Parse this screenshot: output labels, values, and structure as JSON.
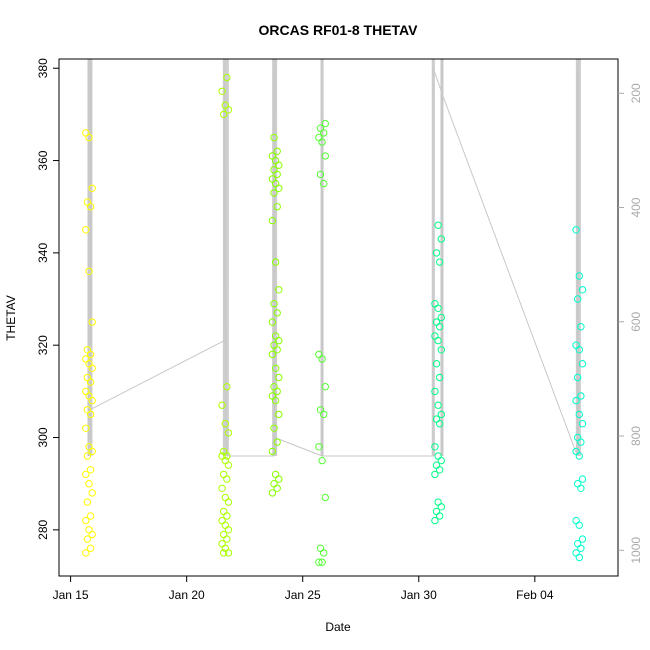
{
  "chart_data": {
    "type": "scatter",
    "title": "ORCAS RF01-8 THETAV",
    "xlabel": "Date",
    "ylabel": "THETAV",
    "xlim": [
      "2016-01-14T12:00",
      "2016-02-07T14:00"
    ],
    "ylim": [
      270,
      382
    ],
    "x_ticks": [
      {
        "date": "2016-01-15",
        "label": "Jan 15"
      },
      {
        "date": "2016-01-20",
        "label": "Jan 20"
      },
      {
        "date": "2016-01-25",
        "label": "Jan 25"
      },
      {
        "date": "2016-01-30",
        "label": "Jan 30"
      },
      {
        "date": "2016-02-04",
        "label": "Feb 04"
      }
    ],
    "y_ticks": [
      280,
      300,
      320,
      340,
      360,
      380
    ],
    "y2_ticks": [
      200,
      400,
      600,
      800,
      1000
    ],
    "y2lim": [
      1045,
      140
    ],
    "grid": false,
    "legend": "none",
    "series": [
      {
        "color": "#ffff00",
        "center": "2016-01-15T19:00",
        "values": [
          366,
          365,
          354,
          351,
          350,
          345,
          336,
          325,
          319,
          318,
          317,
          316,
          315,
          313,
          312,
          310,
          309,
          308,
          306,
          305,
          302,
          298,
          297,
          296,
          293,
          292,
          290,
          288,
          286,
          283,
          282,
          280,
          279,
          278,
          276,
          275
        ]
      },
      {
        "color": "#aaff00",
        "center": "2016-01-21T16:00",
        "values": [
          378,
          375,
          372,
          371,
          370,
          311,
          307,
          303,
          301,
          297,
          296,
          296,
          295,
          294,
          292,
          291,
          289,
          287,
          286,
          284,
          283,
          282,
          281,
          280,
          279,
          278,
          277,
          276,
          275,
          275
        ]
      },
      {
        "color": "#88ff00",
        "center": "2016-01-23T20:00",
        "values": [
          365,
          362,
          361,
          360,
          359,
          358,
          357,
          356,
          355,
          354,
          353,
          350,
          347,
          338,
          332,
          329,
          327,
          325,
          322,
          321,
          320,
          319,
          318,
          315,
          313,
          311,
          310,
          309,
          308,
          305,
          302,
          299,
          297,
          292,
          291,
          290,
          289,
          288
        ]
      },
      {
        "color": "#55ff33",
        "center": "2016-01-25T20:00",
        "values": [
          368,
          367,
          366,
          365,
          364,
          361,
          357,
          355,
          318,
          317,
          311,
          306,
          305,
          298,
          295,
          287,
          276,
          275,
          273,
          273
        ]
      },
      {
        "color": "#00ff88",
        "center": "2016-01-30T20:00",
        "values": [
          346,
          343,
          340,
          338,
          329,
          328,
          326,
          325,
          324,
          322,
          321,
          319,
          316,
          313,
          310,
          307,
          305,
          304,
          303,
          298,
          296,
          295,
          294,
          293,
          292,
          286,
          285,
          284,
          283,
          282
        ]
      },
      {
        "color": "#00ffcc",
        "center": "2016-02-05T22:00",
        "values": [
          345,
          335,
          332,
          330,
          324,
          320,
          319,
          316,
          313,
          309,
          308,
          305,
          303,
          300,
          299,
          297,
          296,
          291,
          290,
          289,
          282,
          281,
          278,
          277,
          276,
          275,
          274
        ]
      }
    ],
    "trace": {
      "color": "#c8c8c8",
      "points": [
        [
          "2016-01-15T21:00",
          380
        ],
        [
          "2016-01-15T21:00",
          313
        ],
        [
          "2016-01-15T20:00",
          306
        ],
        [
          "2016-01-21T15:00",
          321
        ],
        [
          "2016-01-21T15:00",
          378
        ],
        [
          "2016-01-21T18:00",
          296
        ],
        [
          "2016-01-23T18:00",
          296
        ],
        [
          "2016-01-23T18:00",
          380
        ],
        [
          "2016-01-23T19:00",
          300
        ],
        [
          "2016-01-25T20:00",
          296
        ],
        [
          "2016-01-25T20:00",
          380
        ],
        [
          "2016-01-25T21:00",
          296
        ],
        [
          "2016-01-30T15:00",
          296
        ],
        [
          "2016-01-30T15:00",
          380
        ],
        [
          "2016-01-31T01:00",
          374
        ],
        [
          "2016-02-05T20:00",
          296
        ],
        [
          "2016-02-05T20:00",
          380
        ],
        [
          "2016-02-05T22:00",
          302
        ]
      ],
      "spikes": [
        "2016-01-15T19:00",
        "2016-01-15T21:00",
        "2016-01-21T15:00",
        "2016-01-21T18:00",
        "2016-01-23T18:00",
        "2016-01-23T20:00",
        "2016-01-25T20:00",
        "2016-01-30T15:00",
        "2016-01-31T00:00",
        "2016-02-05T20:00",
        "2016-02-05T22:00"
      ]
    }
  }
}
